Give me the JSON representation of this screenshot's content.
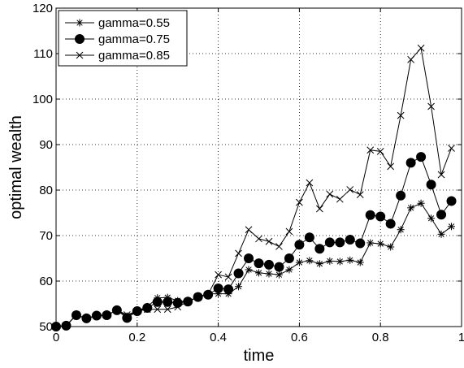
{
  "chart_data": {
    "type": "line",
    "title": "",
    "xlabel": "time",
    "ylabel": "optimal wealth",
    "xlim": [
      0,
      1
    ],
    "ylim": [
      50,
      120
    ],
    "xticks": [
      "0",
      "0.2",
      "0.4",
      "0.6",
      "0.8",
      "1"
    ],
    "yticks": [
      "50",
      "60",
      "70",
      "80",
      "90",
      "100",
      "110",
      "120"
    ],
    "grid": true,
    "legend_position": "top-left",
    "x": [
      0,
      0.025,
      0.05,
      0.075,
      0.1,
      0.125,
      0.15,
      0.175,
      0.2,
      0.225,
      0.25,
      0.275,
      0.3,
      0.325,
      0.35,
      0.375,
      0.4,
      0.425,
      0.45,
      0.475,
      0.5,
      0.525,
      0.55,
      0.575,
      0.6,
      0.625,
      0.65,
      0.675,
      0.7,
      0.725,
      0.75,
      0.775,
      0.8,
      0.825,
      0.85,
      0.875,
      0.9,
      0.925,
      0.95,
      0.975
    ],
    "series": [
      {
        "name": "gamma=0.55",
        "marker": "star",
        "values": [
          50,
          50.3,
          52.5,
          51.8,
          52.4,
          52.5,
          53.6,
          52.3,
          53.4,
          54.4,
          56.3,
          56.4,
          55.7,
          55.4,
          56.5,
          57.2,
          57.2,
          57.2,
          58.8,
          62.5,
          61.8,
          61.6,
          61.4,
          62.5,
          64.1,
          64.5,
          63.8,
          64.4,
          64.3,
          64.6,
          64.1,
          68.4,
          68.2,
          67.5,
          71.3,
          76.1,
          77.1,
          73.8,
          70.3,
          72.0
        ]
      },
      {
        "name": "gamma=0.75",
        "marker": "circle",
        "values": [
          50,
          50.2,
          52.5,
          51.8,
          52.4,
          52.5,
          53.6,
          51.9,
          53.4,
          54.1,
          55.4,
          55.4,
          55.2,
          55.5,
          56.5,
          57.0,
          58.4,
          58.2,
          61.7,
          65.0,
          63.9,
          63.6,
          63.1,
          65.0,
          68.0,
          69.6,
          67.1,
          68.5,
          68.5,
          69.1,
          68.3,
          74.5,
          74.2,
          72.6,
          78.8,
          86.0,
          87.3,
          81.2,
          74.6,
          77.6
        ]
      },
      {
        "name": "gamma=0.85",
        "marker": "x",
        "values": [
          50,
          50.2,
          52.6,
          51.8,
          52.4,
          52.5,
          53.6,
          52.6,
          53.4,
          53.8,
          53.8,
          53.8,
          54.3,
          55.5,
          56.6,
          57.1,
          61.4,
          60.9,
          66.1,
          71.3,
          69.3,
          68.7,
          67.6,
          70.9,
          77.3,
          81.6,
          75.9,
          79.1,
          78.0,
          80.1,
          79.0,
          88.8,
          88.5,
          85.2,
          96.4,
          108.7,
          111.2,
          98.4,
          83.4,
          89.2
        ]
      }
    ]
  }
}
